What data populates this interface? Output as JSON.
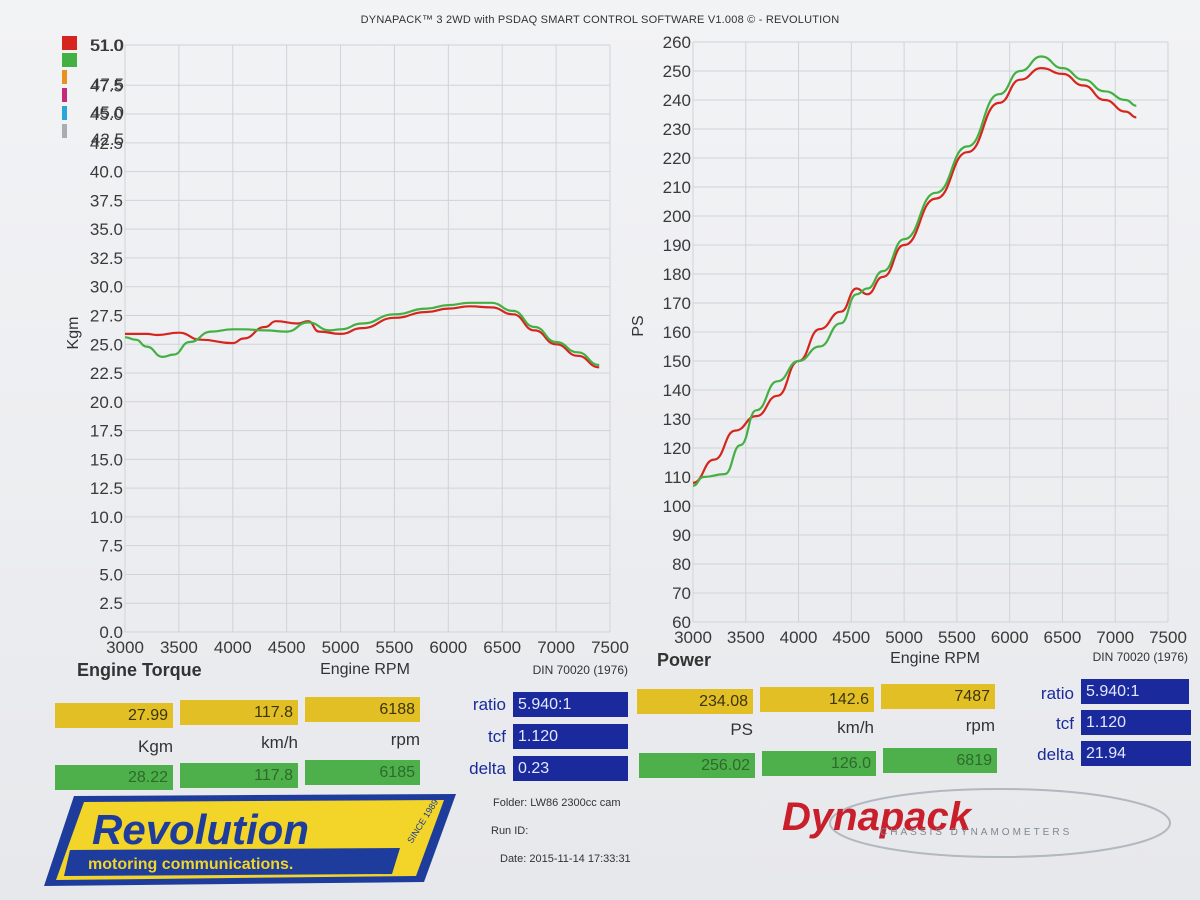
{
  "header": {
    "title": "DYNAPACK™ 3 2WD with PSDAQ SMART CONTROL SOFTWARE V1.008 © - REVOLUTION"
  },
  "colors": {
    "red_run": "#d6251f",
    "green_run": "#43b043",
    "grid": "#cfd3d8",
    "blue": "#1a2a9c",
    "yellow": "#e2bf24"
  },
  "chart_data": [
    {
      "type": "line",
      "title": "Engine Torque",
      "xlabel": "Engine RPM",
      "ylabel": "Kgm",
      "standard": "DIN 70020 (1976)",
      "xlim": [
        3000,
        7500
      ],
      "ylim": [
        0,
        51
      ],
      "xticks": [
        "3000",
        "3500",
        "4000",
        "4500",
        "5000",
        "5500",
        "6000",
        "6500",
        "7000",
        "7500"
      ],
      "yticks": [
        "0.0",
        "2.5",
        "5.0",
        "7.5",
        "10.0",
        "12.5",
        "15.0",
        "17.5",
        "20.0",
        "22.5",
        "25.0",
        "27.5",
        "30.0",
        "32.5",
        "35.0",
        "37.5",
        "40.0",
        "42.5",
        "45.0",
        "47.5",
        "51.0"
      ],
      "grid": true,
      "series": [
        {
          "color": "red",
          "points": [
            [
              3000,
              25.9
            ],
            [
              3200,
              25.9
            ],
            [
              3300,
              25.8
            ],
            [
              3500,
              26.0
            ],
            [
              3700,
              25.4
            ],
            [
              4000,
              25.1
            ],
            [
              4100,
              25.5
            ],
            [
              4300,
              26.5
            ],
            [
              4400,
              27.0
            ],
            [
              4600,
              26.8
            ],
            [
              4700,
              27.0
            ],
            [
              4800,
              26.1
            ],
            [
              5000,
              25.9
            ],
            [
              5200,
              26.4
            ],
            [
              5500,
              27.3
            ],
            [
              5800,
              27.8
            ],
            [
              6000,
              28.1
            ],
            [
              6200,
              28.3
            ],
            [
              6400,
              28.2
            ],
            [
              6600,
              27.6
            ],
            [
              6800,
              26.2
            ],
            [
              7000,
              25.0
            ],
            [
              7200,
              24.0
            ],
            [
              7400,
              23.0
            ]
          ]
        },
        {
          "color": "green",
          "points": [
            [
              3000,
              25.6
            ],
            [
              3100,
              25.4
            ],
            [
              3200,
              24.8
            ],
            [
              3350,
              23.9
            ],
            [
              3450,
              24.1
            ],
            [
              3600,
              25.2
            ],
            [
              3800,
              26.1
            ],
            [
              4000,
              26.3
            ],
            [
              4100,
              26.3
            ],
            [
              4300,
              26.2
            ],
            [
              4500,
              26.1
            ],
            [
              4700,
              26.9
            ],
            [
              4900,
              26.2
            ],
            [
              5000,
              26.3
            ],
            [
              5200,
              26.8
            ],
            [
              5500,
              27.6
            ],
            [
              5800,
              28.1
            ],
            [
              6000,
              28.4
            ],
            [
              6200,
              28.6
            ],
            [
              6400,
              28.6
            ],
            [
              6600,
              27.9
            ],
            [
              6800,
              26.5
            ],
            [
              7000,
              25.2
            ],
            [
              7200,
              24.3
            ],
            [
              7400,
              23.2
            ]
          ]
        }
      ]
    },
    {
      "type": "line",
      "title": "Power",
      "xlabel": "Engine RPM",
      "ylabel": "PS",
      "standard": "DIN 70020 (1976)",
      "xlim": [
        3000,
        7500
      ],
      "ylim": [
        60,
        260
      ],
      "xticks": [
        "3000",
        "3500",
        "4000",
        "4500",
        "5000",
        "5500",
        "6000",
        "6500",
        "7000",
        "7500"
      ],
      "yticks": [
        "60",
        "70",
        "80",
        "90",
        "100",
        "110",
        "120",
        "130",
        "140",
        "150",
        "160",
        "170",
        "180",
        "190",
        "200",
        "210",
        "220",
        "230",
        "240",
        "250",
        "260"
      ],
      "grid": true,
      "series": [
        {
          "color": "red",
          "points": [
            [
              3000,
              108
            ],
            [
              3200,
              116
            ],
            [
              3400,
              126
            ],
            [
              3600,
              131
            ],
            [
              3800,
              138
            ],
            [
              4000,
              150
            ],
            [
              4200,
              161
            ],
            [
              4400,
              167
            ],
            [
              4550,
              175
            ],
            [
              4650,
              173
            ],
            [
              4800,
              179
            ],
            [
              5000,
              190
            ],
            [
              5300,
              206
            ],
            [
              5600,
              222
            ],
            [
              5900,
              239
            ],
            [
              6100,
              247
            ],
            [
              6300,
              251
            ],
            [
              6500,
              249
            ],
            [
              6700,
              245
            ],
            [
              6900,
              240
            ],
            [
              7100,
              236
            ],
            [
              7200,
              234
            ]
          ]
        },
        {
          "color": "green",
          "points": [
            [
              3000,
              107
            ],
            [
              3100,
              110
            ],
            [
              3300,
              111
            ],
            [
              3450,
              121
            ],
            [
              3600,
              133
            ],
            [
              3800,
              143
            ],
            [
              4000,
              150
            ],
            [
              4200,
              155
            ],
            [
              4400,
              163
            ],
            [
              4550,
              173
            ],
            [
              4650,
              175
            ],
            [
              4800,
              181
            ],
            [
              5000,
              192
            ],
            [
              5300,
              208
            ],
            [
              5600,
              224
            ],
            [
              5900,
              242
            ],
            [
              6100,
              250
            ],
            [
              6300,
              255
            ],
            [
              6500,
              251
            ],
            [
              6700,
              247
            ],
            [
              6900,
              243
            ],
            [
              7100,
              240
            ],
            [
              7200,
              238
            ]
          ]
        }
      ]
    }
  ],
  "legend_values": [
    "51.0",
    "47.5",
    "45.0",
    "42.5"
  ],
  "torque_panel": {
    "yellow": [
      "27.99",
      "117.8",
      "6188"
    ],
    "units": [
      "Kgm",
      "km/h",
      "rpm"
    ],
    "green": [
      "28.22",
      "117.8",
      "6185"
    ],
    "ratio_label": "ratio",
    "ratio": "5.940:1",
    "tcf_label": "tcf",
    "tcf": "1.120",
    "delta_label": "delta",
    "delta": "0.23"
  },
  "power_panel": {
    "yellow": [
      "234.08",
      "142.6",
      "7487"
    ],
    "units": [
      "PS",
      "km/h",
      "rpm"
    ],
    "green": [
      "256.02",
      "126.0",
      "6819"
    ],
    "ratio_label": "ratio",
    "ratio": "5.940:1",
    "tcf_label": "tcf",
    "tcf": "1.120",
    "delta_label": "delta",
    "delta": "21.94"
  },
  "info": {
    "folder": "Folder:  LW86 2300cc cam",
    "run_id": "Run ID:",
    "date": "Date:  2015-11-14 17:33:31"
  },
  "logos": {
    "revolution_main": "Revolution",
    "revolution_sub": "motoring communications.",
    "revolution_since": "SINCE 1989",
    "dynapack_main": "Dynapack",
    "dynapack_sub": "CHASSIS DYNAMOMETERS"
  }
}
